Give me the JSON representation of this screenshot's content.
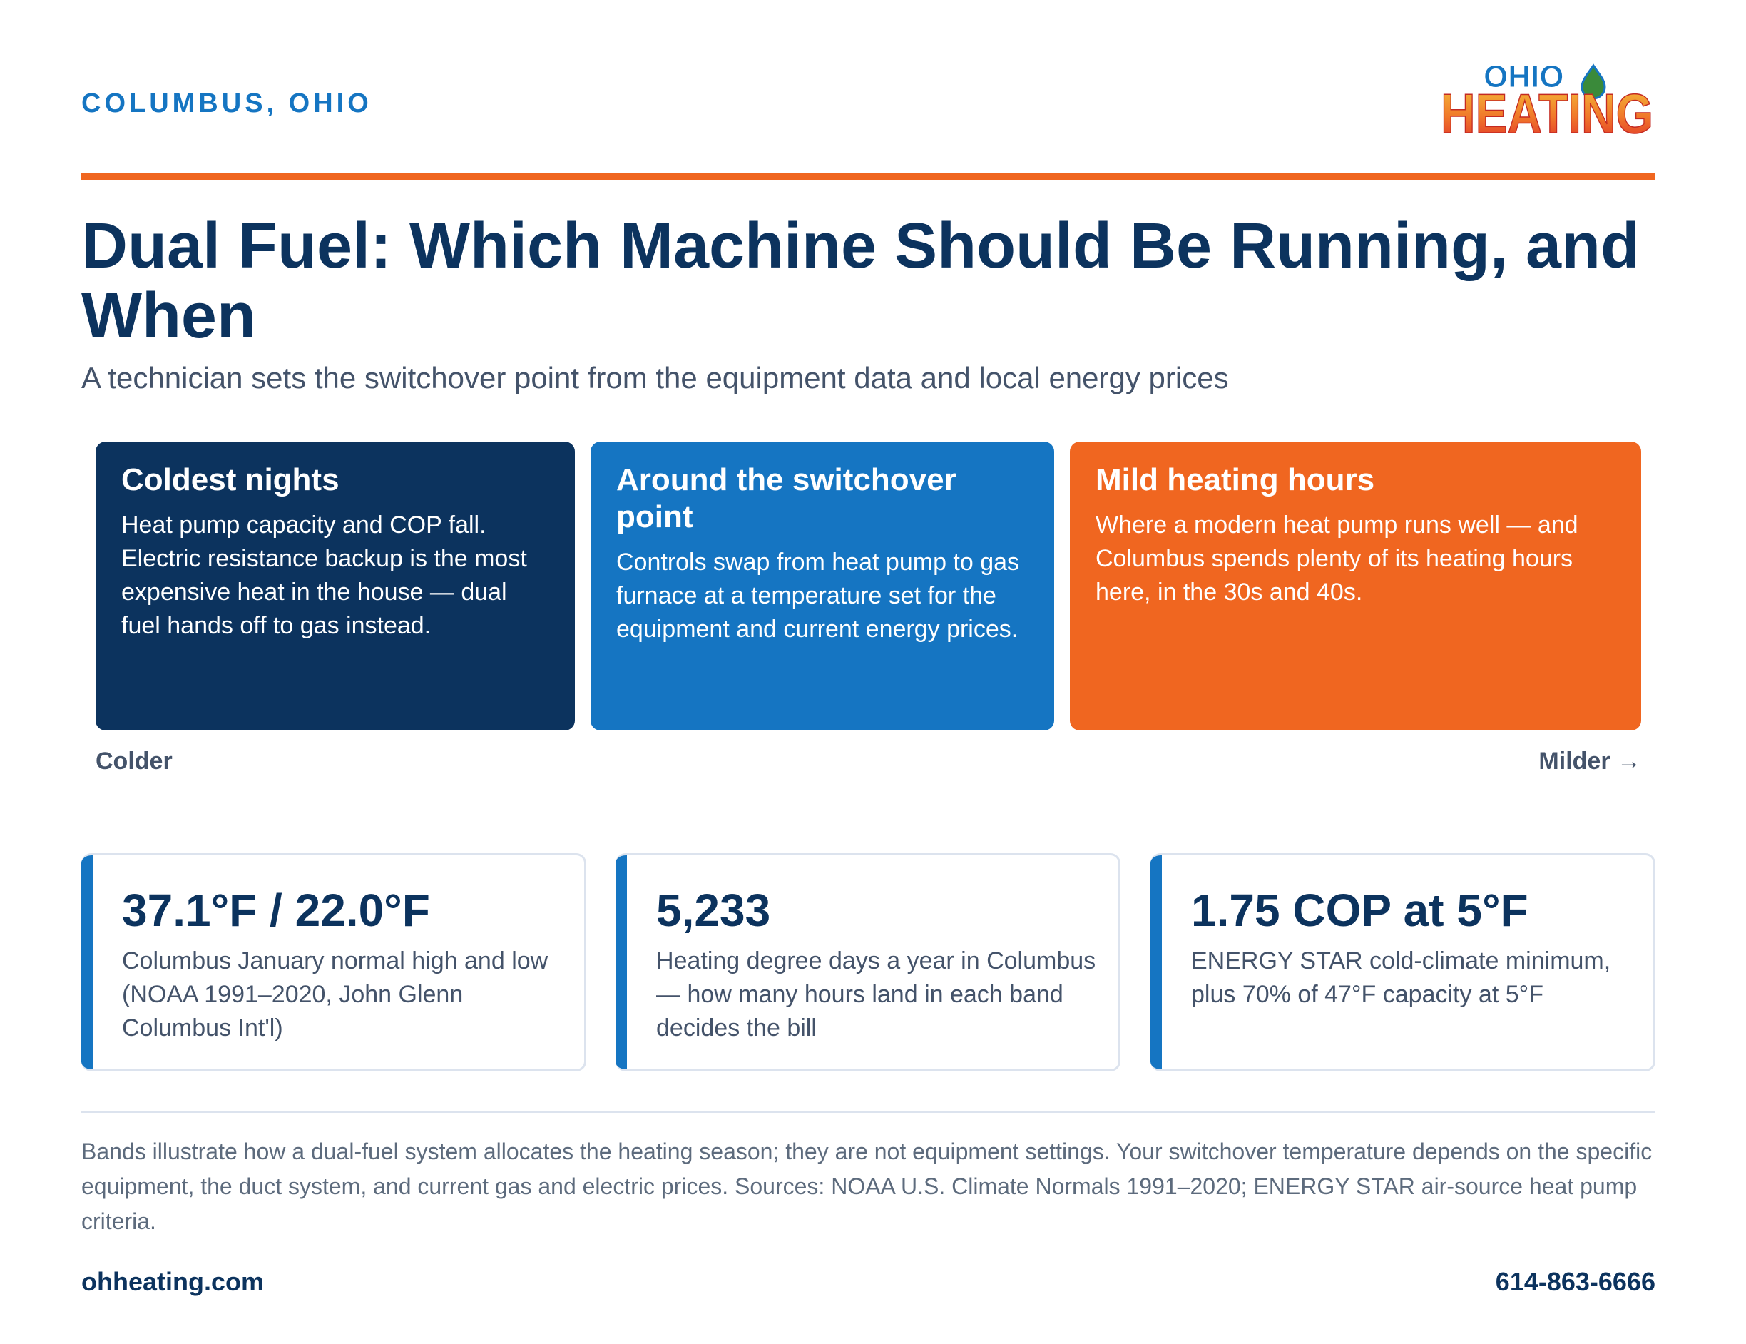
{
  "header": {
    "location": "COLUMBUS, OHIO",
    "logo": {
      "line1": "OHIO",
      "line2": "HEATING",
      "colors": {
        "ohio": "#1575c2",
        "heating_top": "#f2b233",
        "heating_bottom": "#e0302a",
        "drop": "#3a8a3a"
      }
    }
  },
  "title": "Dual Fuel: Which Machine Should Be Running, and When",
  "subtitle": "A technician sets the switchover point from the equipment data and local energy prices",
  "bands": [
    {
      "title": "Coldest nights",
      "body": "Heat pump capacity and COP fall. Electric resistance backup is the most expensive heat in the house — dual fuel hands off to gas instead.",
      "color": "#0c335e"
    },
    {
      "title": "Around the switchover point",
      "body": "Controls swap from heat pump to gas furnace at a temperature set for the equipment and current energy prices.",
      "color": "#1575c2"
    },
    {
      "title": "Mild heating hours",
      "body": "Where a modern heat pump runs well — and Columbus spends plenty of its heating hours here, in the 30s and 40s.",
      "color": "#f06620"
    }
  ],
  "axis": {
    "left_label": "Colder",
    "right_label": "Milder →"
  },
  "stats": [
    {
      "value": "37.1°F / 22.0°F",
      "description": "Columbus January normal high and low (NOAA 1991–2020, John Glenn Columbus Int'l)"
    },
    {
      "value": "5,233",
      "description": "Heating degree days a year in Columbus — how many hours land in each band decides the bill"
    },
    {
      "value": "1.75 COP at 5°F",
      "description": "ENERGY STAR cold-climate minimum, plus 70% of 47°F capacity at 5°F"
    }
  ],
  "footnote": "Bands illustrate how a dual-fuel system allocates the heating season; they are not equipment settings. Your switchover temperature depends on the specific equipment, the duct system, and current gas and electric prices. Sources: NOAA U.S. Climate Normals 1991–2020; ENERGY STAR air-source heat pump criteria.",
  "footer": {
    "website": "ohheating.com",
    "phone": "614-863-6666"
  },
  "colors": {
    "navy": "#0c335e",
    "blue": "#1575c2",
    "orange": "#f06620",
    "text_grey": "#44536a",
    "border": "#dce3ee"
  }
}
